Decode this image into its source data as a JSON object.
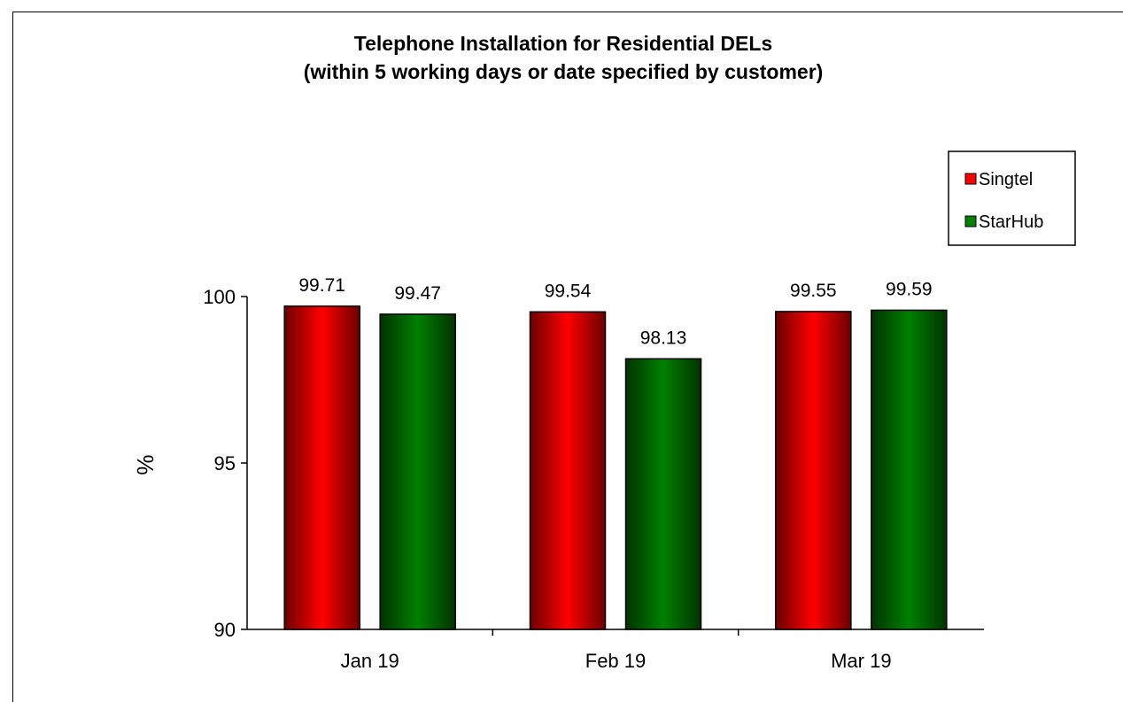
{
  "chart_data": {
    "type": "bar",
    "title": "Telephone Installation for Residential DELs",
    "subtitle": "(within 5 working days or date specified by customer)",
    "xlabel": "",
    "ylabel": "%",
    "categories": [
      "Jan 19",
      "Feb 19",
      "Mar 19"
    ],
    "series": [
      {
        "name": "Singtel",
        "values": [
          99.71,
          99.54,
          99.55
        ],
        "color": "#ff0000"
      },
      {
        "name": "StarHub",
        "values": [
          99.47,
          98.13,
          99.59
        ],
        "color": "#008000"
      }
    ],
    "ylim": [
      90,
      100
    ],
    "yticks": [
      "90",
      "95",
      "100"
    ],
    "data_labels": [
      [
        "99.71",
        "99.54",
        "99.55"
      ],
      [
        "99.47",
        "98.13",
        "99.59"
      ]
    ],
    "grid": false,
    "legend_position": "top-right"
  }
}
